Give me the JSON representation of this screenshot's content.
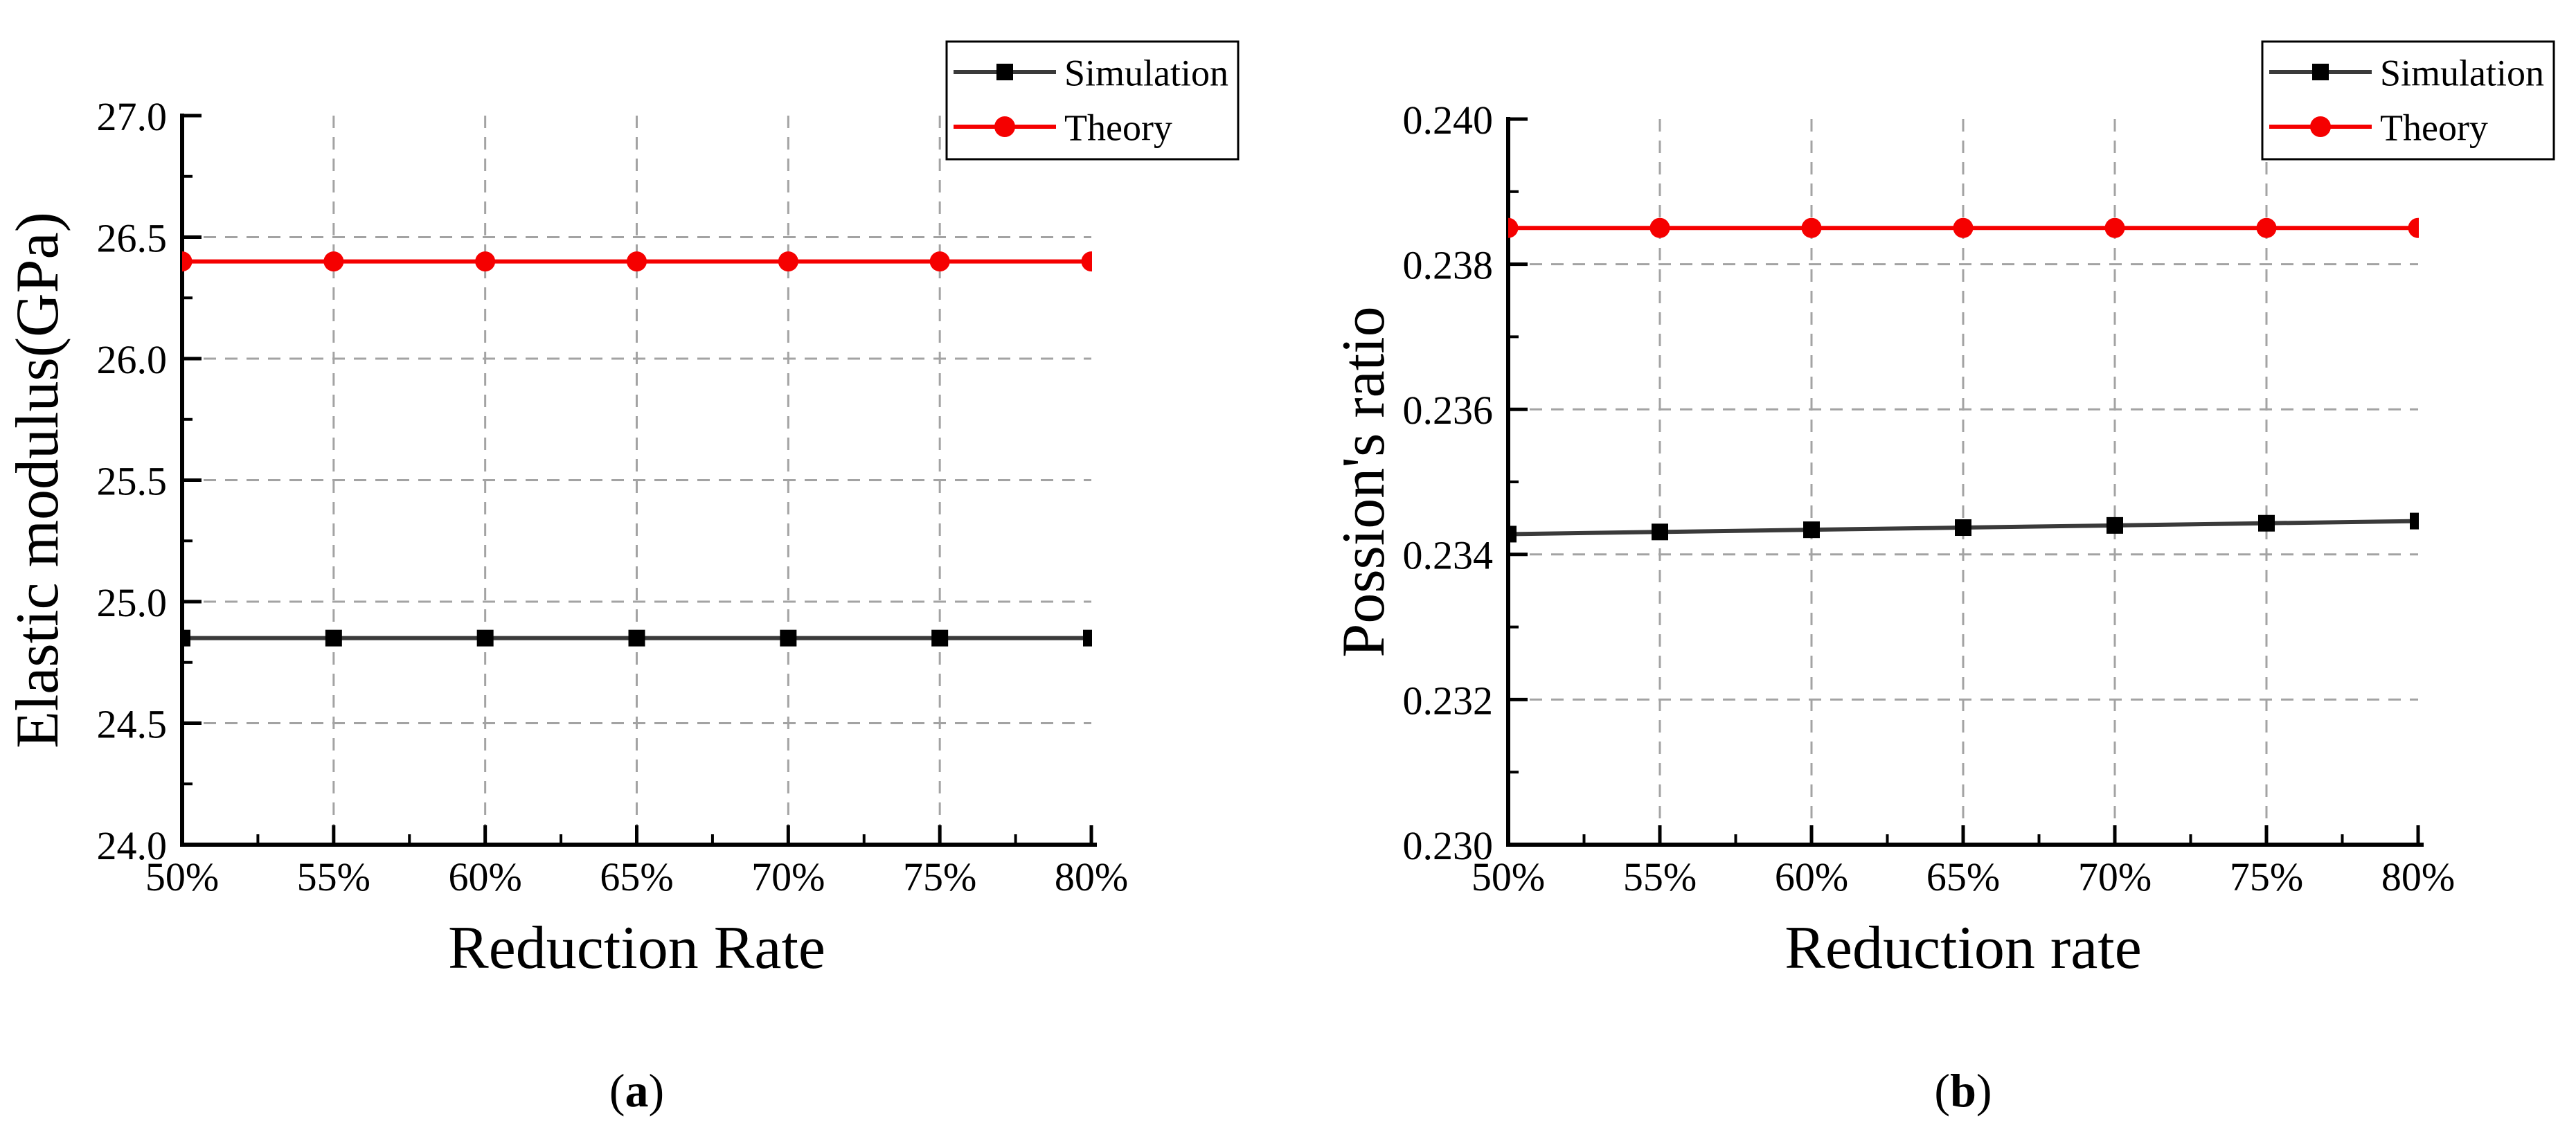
{
  "figure": {
    "background": "#ffffff",
    "text_color": "#000000",
    "grid_color": "#a3a3a3",
    "axis_color": "#000000"
  },
  "chart_data": [
    {
      "type": "line",
      "caption": "(a)",
      "xlabel": "Reduction Rate",
      "ylabel": "Elastic modulus(GPa)",
      "x_tick_labels": [
        "50%",
        "55%",
        "60%",
        "65%",
        "70%",
        "75%",
        "80%"
      ],
      "x_values": [
        50,
        55,
        60,
        65,
        70,
        75,
        80
      ],
      "xlim": [
        50,
        80
      ],
      "x_minor_step": 2.5,
      "ylim": [
        24.0,
        27.0
      ],
      "y_tick_values": [
        24.0,
        24.5,
        25.0,
        25.5,
        26.0,
        26.5,
        27.0
      ],
      "y_tick_labels": [
        "24.0",
        "24.5",
        "25.0",
        "25.5",
        "26.0",
        "26.5",
        "27.0"
      ],
      "y_minor_step": 0.25,
      "grid_x_values": [
        55,
        60,
        65,
        70,
        75
      ],
      "grid_y_values": [
        24.5,
        25.0,
        25.5,
        26.0,
        26.5
      ],
      "legend_position": "top-right",
      "series": [
        {
          "name": "Simulation",
          "color": "#3a3a3a",
          "marker": "square",
          "marker_color": "#000000",
          "values": [
            24.85,
            24.85,
            24.85,
            24.85,
            24.85,
            24.85,
            24.85
          ]
        },
        {
          "name": "Theory",
          "color": "#f50000",
          "marker": "circle",
          "marker_color": "#f50000",
          "values": [
            26.4,
            26.4,
            26.4,
            26.4,
            26.4,
            26.4,
            26.4
          ]
        }
      ]
    },
    {
      "type": "line",
      "caption": "(b)",
      "xlabel": "Reduction rate",
      "ylabel": "Possion's ratio",
      "x_tick_labels": [
        "50%",
        "55%",
        "60%",
        "65%",
        "70%",
        "75%",
        "80%"
      ],
      "x_values": [
        50,
        55,
        60,
        65,
        70,
        75,
        80
      ],
      "xlim": [
        50,
        80
      ],
      "x_minor_step": 2.5,
      "ylim": [
        0.23,
        0.24
      ],
      "y_tick_values": [
        0.23,
        0.232,
        0.234,
        0.236,
        0.238,
        0.24
      ],
      "y_tick_labels": [
        "0.230",
        "0.232",
        "0.234",
        "0.236",
        "0.238",
        "0.240"
      ],
      "y_minor_step": 0.001,
      "grid_x_values": [
        55,
        60,
        65,
        70,
        75
      ],
      "grid_y_values": [
        0.232,
        0.234,
        0.236,
        0.238
      ],
      "legend_position": "top-right",
      "series": [
        {
          "name": "Simulation",
          "color": "#3a3a3a",
          "marker": "square",
          "marker_color": "#000000",
          "values": [
            0.23428,
            0.23431,
            0.23434,
            0.23437,
            0.2344,
            0.23443,
            0.23446
          ]
        },
        {
          "name": "Theory",
          "color": "#f50000",
          "marker": "circle",
          "marker_color": "#f50000",
          "values": [
            0.2385,
            0.2385,
            0.2385,
            0.2385,
            0.2385,
            0.2385,
            0.2385
          ]
        }
      ]
    }
  ]
}
